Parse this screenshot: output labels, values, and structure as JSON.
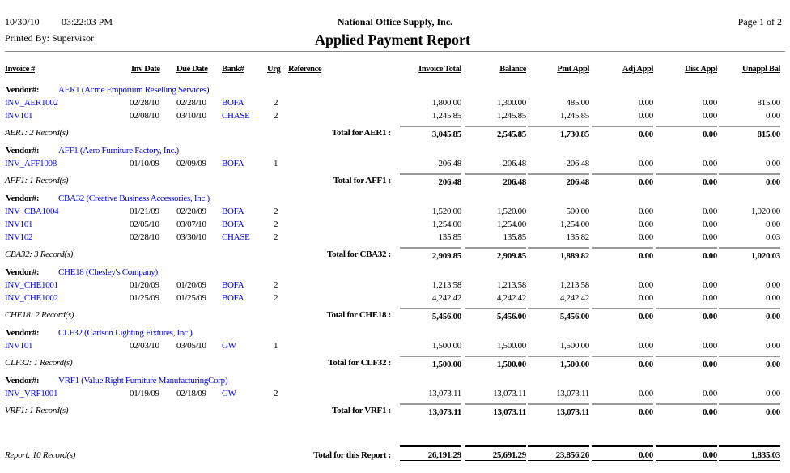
{
  "header": {
    "date": "10/30/10",
    "time": "03:22:03 PM",
    "printed_by": "Printed By: Supervisor",
    "company": "National Office Supply, Inc.",
    "title": "Applied Payment Report",
    "page": "Page 1 of 2"
  },
  "columns": [
    "Invoice #",
    "Inv Date",
    "Due Date",
    "Bank#",
    "Urg",
    "Reference",
    "Invoice Total",
    "Balance",
    "Pmt Appl",
    "Adj Appl",
    "Disc Appl",
    "Unappl Bal"
  ],
  "vendor_label": "Vendor#:",
  "vendors": [
    {
      "vendor": "AER1 (Acme Emporium Reselling Services)",
      "rows": [
        {
          "invoice": "INV_AER1002",
          "inv_date": "02/28/10",
          "due_date": "02/28/10",
          "bank": "BOFA",
          "urg": "2",
          "values": [
            "1,800.00",
            "1,300.00",
            "485.00",
            "0.00",
            "0.00",
            "815.00"
          ]
        },
        {
          "invoice": "INV101",
          "inv_date": "02/08/10",
          "due_date": "03/10/10",
          "bank": "CHASE",
          "urg": "2",
          "values": [
            "1,245.85",
            "1,245.85",
            "1,245.85",
            "0.00",
            "0.00",
            "0.00"
          ]
        }
      ],
      "records": "AER1: 2 Record(s)",
      "total_label": "Total for AER1 :",
      "totals": [
        "3,045.85",
        "2,545.85",
        "1,730.85",
        "0.00",
        "0.00",
        "815.00"
      ]
    },
    {
      "vendor": "AFF1 (Aero Furniture Factory, Inc.)",
      "rows": [
        {
          "invoice": "INV_AFF1008",
          "inv_date": "01/10/09",
          "due_date": "02/09/09",
          "bank": "BOFA",
          "urg": "1",
          "values": [
            "206.48",
            "206.48",
            "206.48",
            "0.00",
            "0.00",
            "0.00"
          ]
        }
      ],
      "records": "AFF1: 1 Record(s)",
      "total_label": "Total for AFF1 :",
      "totals": [
        "206.48",
        "206.48",
        "206.48",
        "0.00",
        "0.00",
        "0.00"
      ]
    },
    {
      "vendor": "CBA32 (Creative Business Accessories, Inc.)",
      "rows": [
        {
          "invoice": "INV_CBA1004",
          "inv_date": "01/21/09",
          "due_date": "02/20/09",
          "bank": "BOFA",
          "urg": "2",
          "values": [
            "1,520.00",
            "1,520.00",
            "500.00",
            "0.00",
            "0.00",
            "1,020.00"
          ]
        },
        {
          "invoice": "INV101",
          "inv_date": "02/05/10",
          "due_date": "03/07/10",
          "bank": "BOFA",
          "urg": "2",
          "values": [
            "1,254.00",
            "1,254.00",
            "1,254.00",
            "0.00",
            "0.00",
            "0.00"
          ]
        },
        {
          "invoice": "INV102",
          "inv_date": "02/28/10",
          "due_date": "03/30/10",
          "bank": "CHASE",
          "urg": "2",
          "values": [
            "135.85",
            "135.85",
            "135.82",
            "0.00",
            "0.00",
            "0.03"
          ]
        }
      ],
      "records": "CBA32: 3 Record(s)",
      "total_label": "Total for CBA32 :",
      "totals": [
        "2,909.85",
        "2,909.85",
        "1,889.82",
        "0.00",
        "0.00",
        "1,020.03"
      ]
    },
    {
      "vendor": "CHE18 (Chesley's Company)",
      "rows": [
        {
          "invoice": "INV_CHE1001",
          "inv_date": "01/20/09",
          "due_date": "01/20/09",
          "bank": "BOFA",
          "urg": "2",
          "values": [
            "1,213.58",
            "1,213.58",
            "1,213.58",
            "0.00",
            "0.00",
            "0.00"
          ]
        },
        {
          "invoice": "INV_CHE1002",
          "inv_date": "01/25/09",
          "due_date": "01/25/09",
          "bank": "BOFA",
          "urg": "2",
          "values": [
            "4,242.42",
            "4,242.42",
            "4,242.42",
            "0.00",
            "0.00",
            "0.00"
          ]
        }
      ],
      "records": "CHE18: 2 Record(s)",
      "total_label": "Total for CHE18 :",
      "totals": [
        "5,456.00",
        "5,456.00",
        "5,456.00",
        "0.00",
        "0.00",
        "0.00"
      ]
    },
    {
      "vendor": "CLF32 (Carlson Lighting Fixtures, Inc.)",
      "rows": [
        {
          "invoice": "INV101",
          "inv_date": "02/03/10",
          "due_date": "03/05/10",
          "bank": "GW",
          "urg": "1",
          "values": [
            "1,500.00",
            "1,500.00",
            "1,500.00",
            "0.00",
            "0.00",
            "0.00"
          ]
        }
      ],
      "records": "CLF32: 1 Record(s)",
      "total_label": "Total for CLF32 :",
      "totals": [
        "1,500.00",
        "1,500.00",
        "1,500.00",
        "0.00",
        "0.00",
        "0.00"
      ]
    },
    {
      "vendor": "VRF1 (Value Right Furniture ManufacturingCorp)",
      "rows": [
        {
          "invoice": "INV_VRF1001",
          "inv_date": "01/19/09",
          "due_date": "02/18/09",
          "bank": "GW",
          "urg": "2",
          "values": [
            "13,073.11",
            "13,073.11",
            "13,073.11",
            "0.00",
            "0.00",
            "0.00"
          ]
        }
      ],
      "records": "VRF1: 1 Record(s)",
      "total_label": "Total for VRF1 :",
      "totals": [
        "13,073.11",
        "13,073.11",
        "13,073.11",
        "0.00",
        "0.00",
        "0.00"
      ]
    }
  ],
  "report_total": {
    "records": "Report: 10 Record(s)",
    "label": "Total for this Report :",
    "totals": [
      "26,191.29",
      "25,691.29",
      "23,856.26",
      "0.00",
      "0.00",
      "1,835.03"
    ]
  },
  "colors": {
    "link": "#0000ee",
    "rule": "#999999"
  }
}
